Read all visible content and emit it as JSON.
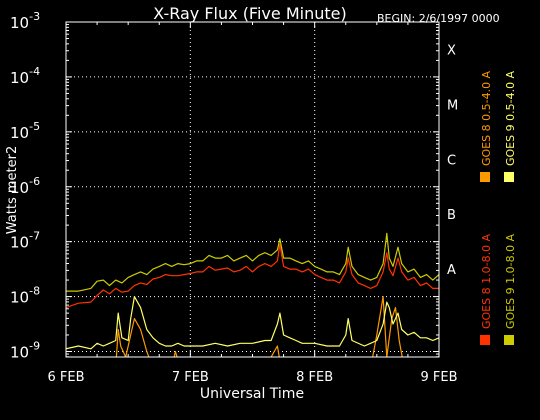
{
  "chart_data": {
    "type": "line",
    "title": "X-Ray Flux (Five Minute)",
    "begin_label": "BEGIN: 2/6/1997 0000",
    "ylabel": "Watts meter2",
    "xlabel": "Universal Time",
    "x_ticks": [
      "6 FEB",
      "7 FEB",
      "8 FEB",
      "9 FEB"
    ],
    "xlim": [
      0,
      3
    ],
    "ylim_log10": [
      -9.1,
      -3
    ],
    "y_ticks": [
      {
        "base": "10",
        "exp": "-3",
        "value": -3
      },
      {
        "base": "10",
        "exp": "-4",
        "value": -4
      },
      {
        "base": "10",
        "exp": "-5",
        "value": -5
      },
      {
        "base": "10",
        "exp": "-6",
        "value": -6
      },
      {
        "base": "10",
        "exp": "-7",
        "value": -7
      },
      {
        "base": "10",
        "exp": "-8",
        "value": -8
      },
      {
        "base": "10",
        "exp": "-9",
        "value": -9
      }
    ],
    "flare_classes": [
      {
        "label": "X",
        "value": -3.5
      },
      {
        "label": "M",
        "value": -4.5
      },
      {
        "label": "C",
        "value": -5.5
      },
      {
        "label": "B",
        "value": -6.5
      },
      {
        "label": "A",
        "value": -7.5
      }
    ],
    "grid": true,
    "legend_position": "right, rotated",
    "series": [
      {
        "name": "GOES 8 1.0-8.0 A",
        "color": "#ff3300",
        "points": [
          [
            0.0,
            -8.2
          ],
          [
            0.1,
            -8.12
          ],
          [
            0.2,
            -8.1
          ],
          [
            0.25,
            -7.98
          ],
          [
            0.3,
            -7.88
          ],
          [
            0.35,
            -7.95
          ],
          [
            0.4,
            -7.85
          ],
          [
            0.45,
            -7.92
          ],
          [
            0.5,
            -7.9
          ],
          [
            0.55,
            -7.8
          ],
          [
            0.6,
            -7.75
          ],
          [
            0.65,
            -7.78
          ],
          [
            0.7,
            -7.68
          ],
          [
            0.75,
            -7.65
          ],
          [
            0.8,
            -7.6
          ],
          [
            0.85,
            -7.62
          ],
          [
            0.9,
            -7.62
          ],
          [
            0.95,
            -7.6
          ],
          [
            1.0,
            -7.58
          ],
          [
            1.05,
            -7.55
          ],
          [
            1.1,
            -7.55
          ],
          [
            1.15,
            -7.45
          ],
          [
            1.2,
            -7.52
          ],
          [
            1.25,
            -7.5
          ],
          [
            1.3,
            -7.48
          ],
          [
            1.35,
            -7.55
          ],
          [
            1.4,
            -7.52
          ],
          [
            1.45,
            -7.45
          ],
          [
            1.5,
            -7.55
          ],
          [
            1.55,
            -7.45
          ],
          [
            1.6,
            -7.4
          ],
          [
            1.65,
            -7.45
          ],
          [
            1.7,
            -7.35
          ],
          [
            1.72,
            -7.05
          ],
          [
            1.75,
            -7.45
          ],
          [
            1.8,
            -7.5
          ],
          [
            1.85,
            -7.5
          ],
          [
            1.9,
            -7.55
          ],
          [
            1.95,
            -7.5
          ],
          [
            2.0,
            -7.6
          ],
          [
            2.05,
            -7.65
          ],
          [
            2.1,
            -7.7
          ],
          [
            2.15,
            -7.7
          ],
          [
            2.2,
            -7.75
          ],
          [
            2.25,
            -7.55
          ],
          [
            2.27,
            -7.3
          ],
          [
            2.3,
            -7.6
          ],
          [
            2.35,
            -7.75
          ],
          [
            2.4,
            -7.8
          ],
          [
            2.45,
            -7.85
          ],
          [
            2.5,
            -7.8
          ],
          [
            2.55,
            -7.55
          ],
          [
            2.58,
            -7.2
          ],
          [
            2.6,
            -7.5
          ],
          [
            2.63,
            -7.62
          ],
          [
            2.67,
            -7.3
          ],
          [
            2.7,
            -7.55
          ],
          [
            2.75,
            -7.7
          ],
          [
            2.8,
            -7.65
          ],
          [
            2.85,
            -7.8
          ],
          [
            2.9,
            -7.75
          ],
          [
            2.95,
            -7.85
          ],
          [
            3.0,
            -7.85
          ]
        ]
      },
      {
        "name": "GOES 8 0.5-4.0 A",
        "color": "#ff9900",
        "points": [
          [
            0.0,
            -9.3
          ],
          [
            0.4,
            -9.3
          ],
          [
            0.42,
            -8.6
          ],
          [
            0.44,
            -8.9
          ],
          [
            0.48,
            -9.1
          ],
          [
            0.55,
            -8.4
          ],
          [
            0.6,
            -8.6
          ],
          [
            0.65,
            -9.0
          ],
          [
            0.7,
            -9.3
          ],
          [
            0.85,
            -9.3
          ],
          [
            0.88,
            -9.0
          ],
          [
            0.92,
            -9.3
          ],
          [
            1.6,
            -9.3
          ],
          [
            1.7,
            -8.9
          ],
          [
            1.73,
            -9.3
          ],
          [
            2.25,
            -9.3
          ],
          [
            2.45,
            -9.3
          ],
          [
            2.5,
            -8.7
          ],
          [
            2.55,
            -8.0
          ],
          [
            2.58,
            -9.1
          ],
          [
            2.62,
            -8.4
          ],
          [
            2.65,
            -8.2
          ],
          [
            2.68,
            -8.8
          ],
          [
            2.72,
            -9.3
          ],
          [
            3.0,
            -9.3
          ]
        ]
      },
      {
        "name": "GOES 9 1.0-8.0 A",
        "color": "#cccc00",
        "points": [
          [
            0.0,
            -7.9
          ],
          [
            0.1,
            -7.9
          ],
          [
            0.2,
            -7.85
          ],
          [
            0.25,
            -7.72
          ],
          [
            0.3,
            -7.7
          ],
          [
            0.35,
            -7.8
          ],
          [
            0.4,
            -7.7
          ],
          [
            0.45,
            -7.75
          ],
          [
            0.5,
            -7.65
          ],
          [
            0.55,
            -7.6
          ],
          [
            0.6,
            -7.55
          ],
          [
            0.65,
            -7.6
          ],
          [
            0.7,
            -7.5
          ],
          [
            0.75,
            -7.45
          ],
          [
            0.8,
            -7.4
          ],
          [
            0.85,
            -7.45
          ],
          [
            0.9,
            -7.4
          ],
          [
            0.95,
            -7.42
          ],
          [
            1.0,
            -7.4
          ],
          [
            1.05,
            -7.35
          ],
          [
            1.1,
            -7.35
          ],
          [
            1.15,
            -7.25
          ],
          [
            1.2,
            -7.3
          ],
          [
            1.25,
            -7.3
          ],
          [
            1.3,
            -7.25
          ],
          [
            1.35,
            -7.35
          ],
          [
            1.4,
            -7.3
          ],
          [
            1.45,
            -7.25
          ],
          [
            1.5,
            -7.35
          ],
          [
            1.55,
            -7.25
          ],
          [
            1.6,
            -7.2
          ],
          [
            1.65,
            -7.25
          ],
          [
            1.7,
            -7.15
          ],
          [
            1.72,
            -6.95
          ],
          [
            1.75,
            -7.3
          ],
          [
            1.8,
            -7.3
          ],
          [
            1.85,
            -7.35
          ],
          [
            1.9,
            -7.4
          ],
          [
            1.95,
            -7.35
          ],
          [
            2.0,
            -7.45
          ],
          [
            2.05,
            -7.5
          ],
          [
            2.1,
            -7.55
          ],
          [
            2.15,
            -7.55
          ],
          [
            2.2,
            -7.6
          ],
          [
            2.25,
            -7.4
          ],
          [
            2.27,
            -7.1
          ],
          [
            2.3,
            -7.45
          ],
          [
            2.35,
            -7.6
          ],
          [
            2.4,
            -7.65
          ],
          [
            2.45,
            -7.7
          ],
          [
            2.5,
            -7.65
          ],
          [
            2.55,
            -7.4
          ],
          [
            2.58,
            -6.85
          ],
          [
            2.6,
            -7.3
          ],
          [
            2.63,
            -7.45
          ],
          [
            2.67,
            -7.1
          ],
          [
            2.7,
            -7.4
          ],
          [
            2.75,
            -7.55
          ],
          [
            2.8,
            -7.5
          ],
          [
            2.85,
            -7.65
          ],
          [
            2.9,
            -7.6
          ],
          [
            2.95,
            -7.7
          ],
          [
            3.0,
            -7.6
          ]
        ]
      },
      {
        "name": "GOES 9 0.5-4.0 A",
        "color": "#ffff66",
        "points": [
          [
            0.0,
            -8.95
          ],
          [
            0.1,
            -8.9
          ],
          [
            0.2,
            -8.95
          ],
          [
            0.25,
            -8.85
          ],
          [
            0.3,
            -8.9
          ],
          [
            0.35,
            -8.85
          ],
          [
            0.4,
            -8.8
          ],
          [
            0.42,
            -8.3
          ],
          [
            0.45,
            -8.75
          ],
          [
            0.5,
            -8.8
          ],
          [
            0.52,
            -8.4
          ],
          [
            0.55,
            -8.0
          ],
          [
            0.6,
            -8.2
          ],
          [
            0.65,
            -8.6
          ],
          [
            0.7,
            -8.75
          ],
          [
            0.75,
            -8.85
          ],
          [
            0.8,
            -8.9
          ],
          [
            0.85,
            -8.9
          ],
          [
            0.9,
            -8.85
          ],
          [
            0.95,
            -8.9
          ],
          [
            1.0,
            -8.9
          ],
          [
            1.1,
            -8.9
          ],
          [
            1.2,
            -8.85
          ],
          [
            1.3,
            -8.9
          ],
          [
            1.4,
            -8.85
          ],
          [
            1.5,
            -8.85
          ],
          [
            1.6,
            -8.8
          ],
          [
            1.65,
            -8.8
          ],
          [
            1.7,
            -8.5
          ],
          [
            1.72,
            -8.3
          ],
          [
            1.75,
            -8.7
          ],
          [
            1.8,
            -8.75
          ],
          [
            1.85,
            -8.8
          ],
          [
            1.9,
            -8.85
          ],
          [
            2.0,
            -8.85
          ],
          [
            2.1,
            -8.9
          ],
          [
            2.2,
            -8.9
          ],
          [
            2.25,
            -8.7
          ],
          [
            2.27,
            -8.4
          ],
          [
            2.3,
            -8.8
          ],
          [
            2.4,
            -8.9
          ],
          [
            2.45,
            -8.85
          ],
          [
            2.5,
            -8.8
          ],
          [
            2.55,
            -8.5
          ],
          [
            2.58,
            -8.1
          ],
          [
            2.6,
            -8.2
          ],
          [
            2.63,
            -8.5
          ],
          [
            2.67,
            -8.3
          ],
          [
            2.7,
            -8.6
          ],
          [
            2.75,
            -8.7
          ],
          [
            2.8,
            -8.65
          ],
          [
            2.85,
            -8.75
          ],
          [
            2.9,
            -8.75
          ],
          [
            2.95,
            -8.8
          ],
          [
            3.0,
            -8.75
          ]
        ]
      }
    ]
  }
}
